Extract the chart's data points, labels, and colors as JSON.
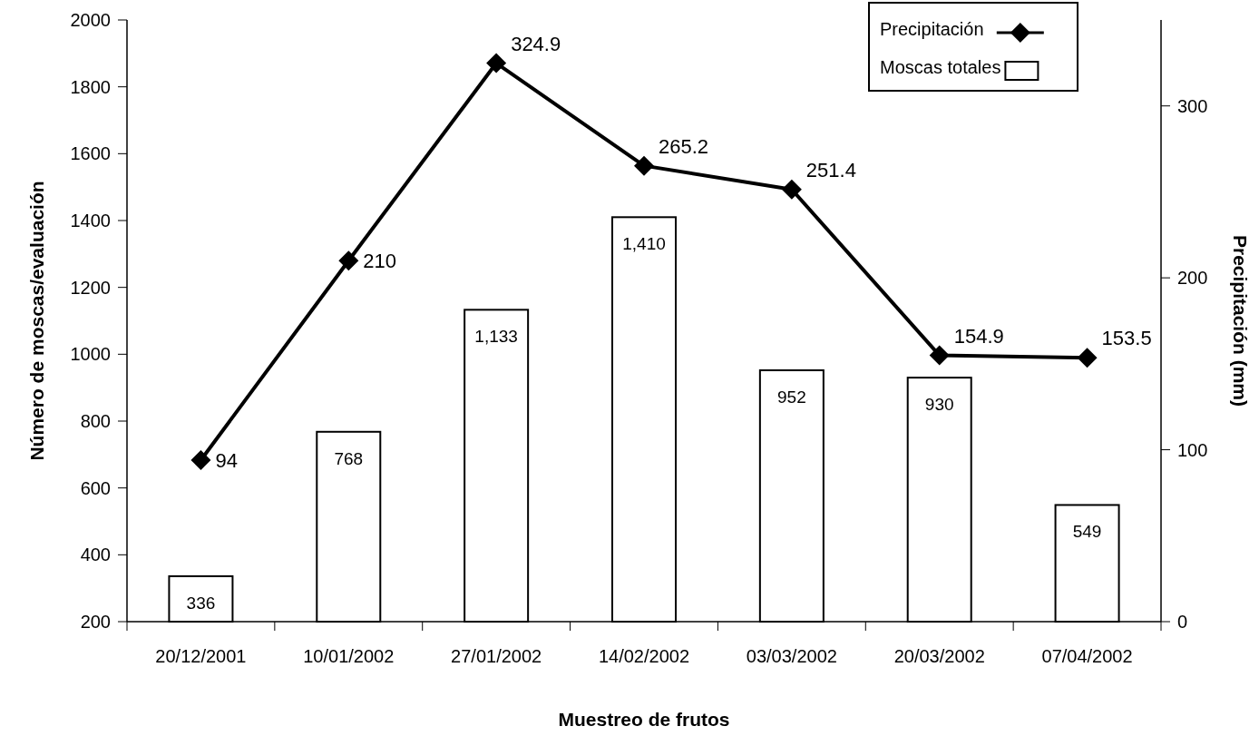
{
  "chart_data": {
    "type": "bar",
    "xlabel": "Muestreo de frutos",
    "ylabel": "Número de moscas/evaluación",
    "y2label": "Precipitación (mm)",
    "categories": [
      "20/12/2001",
      "10/01/2002",
      "27/01/2002",
      "14/02/2002",
      "03/03/2002",
      "20/03/2002",
      "07/04/2002"
    ],
    "series": [
      {
        "name": "Precipitación",
        "type": "line",
        "axis": "y2",
        "color": "#000000",
        "marker": "diamond",
        "line_style": "solid",
        "values": [
          94,
          210,
          324.9,
          265.2,
          251.4,
          154.9,
          153.5
        ],
        "value_labels": [
          "94",
          "210",
          "324.9",
          "265.2",
          "251.4",
          "154.9",
          "153.5"
        ]
      },
      {
        "name": "Moscas totales",
        "color": "#ffffff",
        "values": [
          336,
          768,
          1133,
          1410,
          952,
          930,
          549
        ],
        "value_labels": [
          "336",
          "768",
          "1,133",
          "1,410",
          "952",
          "930",
          "549"
        ]
      }
    ],
    "ylim": [
      200,
      2000
    ],
    "yticks": [
      200,
      400,
      600,
      800,
      1000,
      1200,
      1400,
      1600,
      1800,
      2000
    ],
    "y2lim": [
      0,
      350
    ],
    "y2ticks": [
      0,
      100,
      200,
      300
    ],
    "legend": "top right",
    "grid": false
  }
}
